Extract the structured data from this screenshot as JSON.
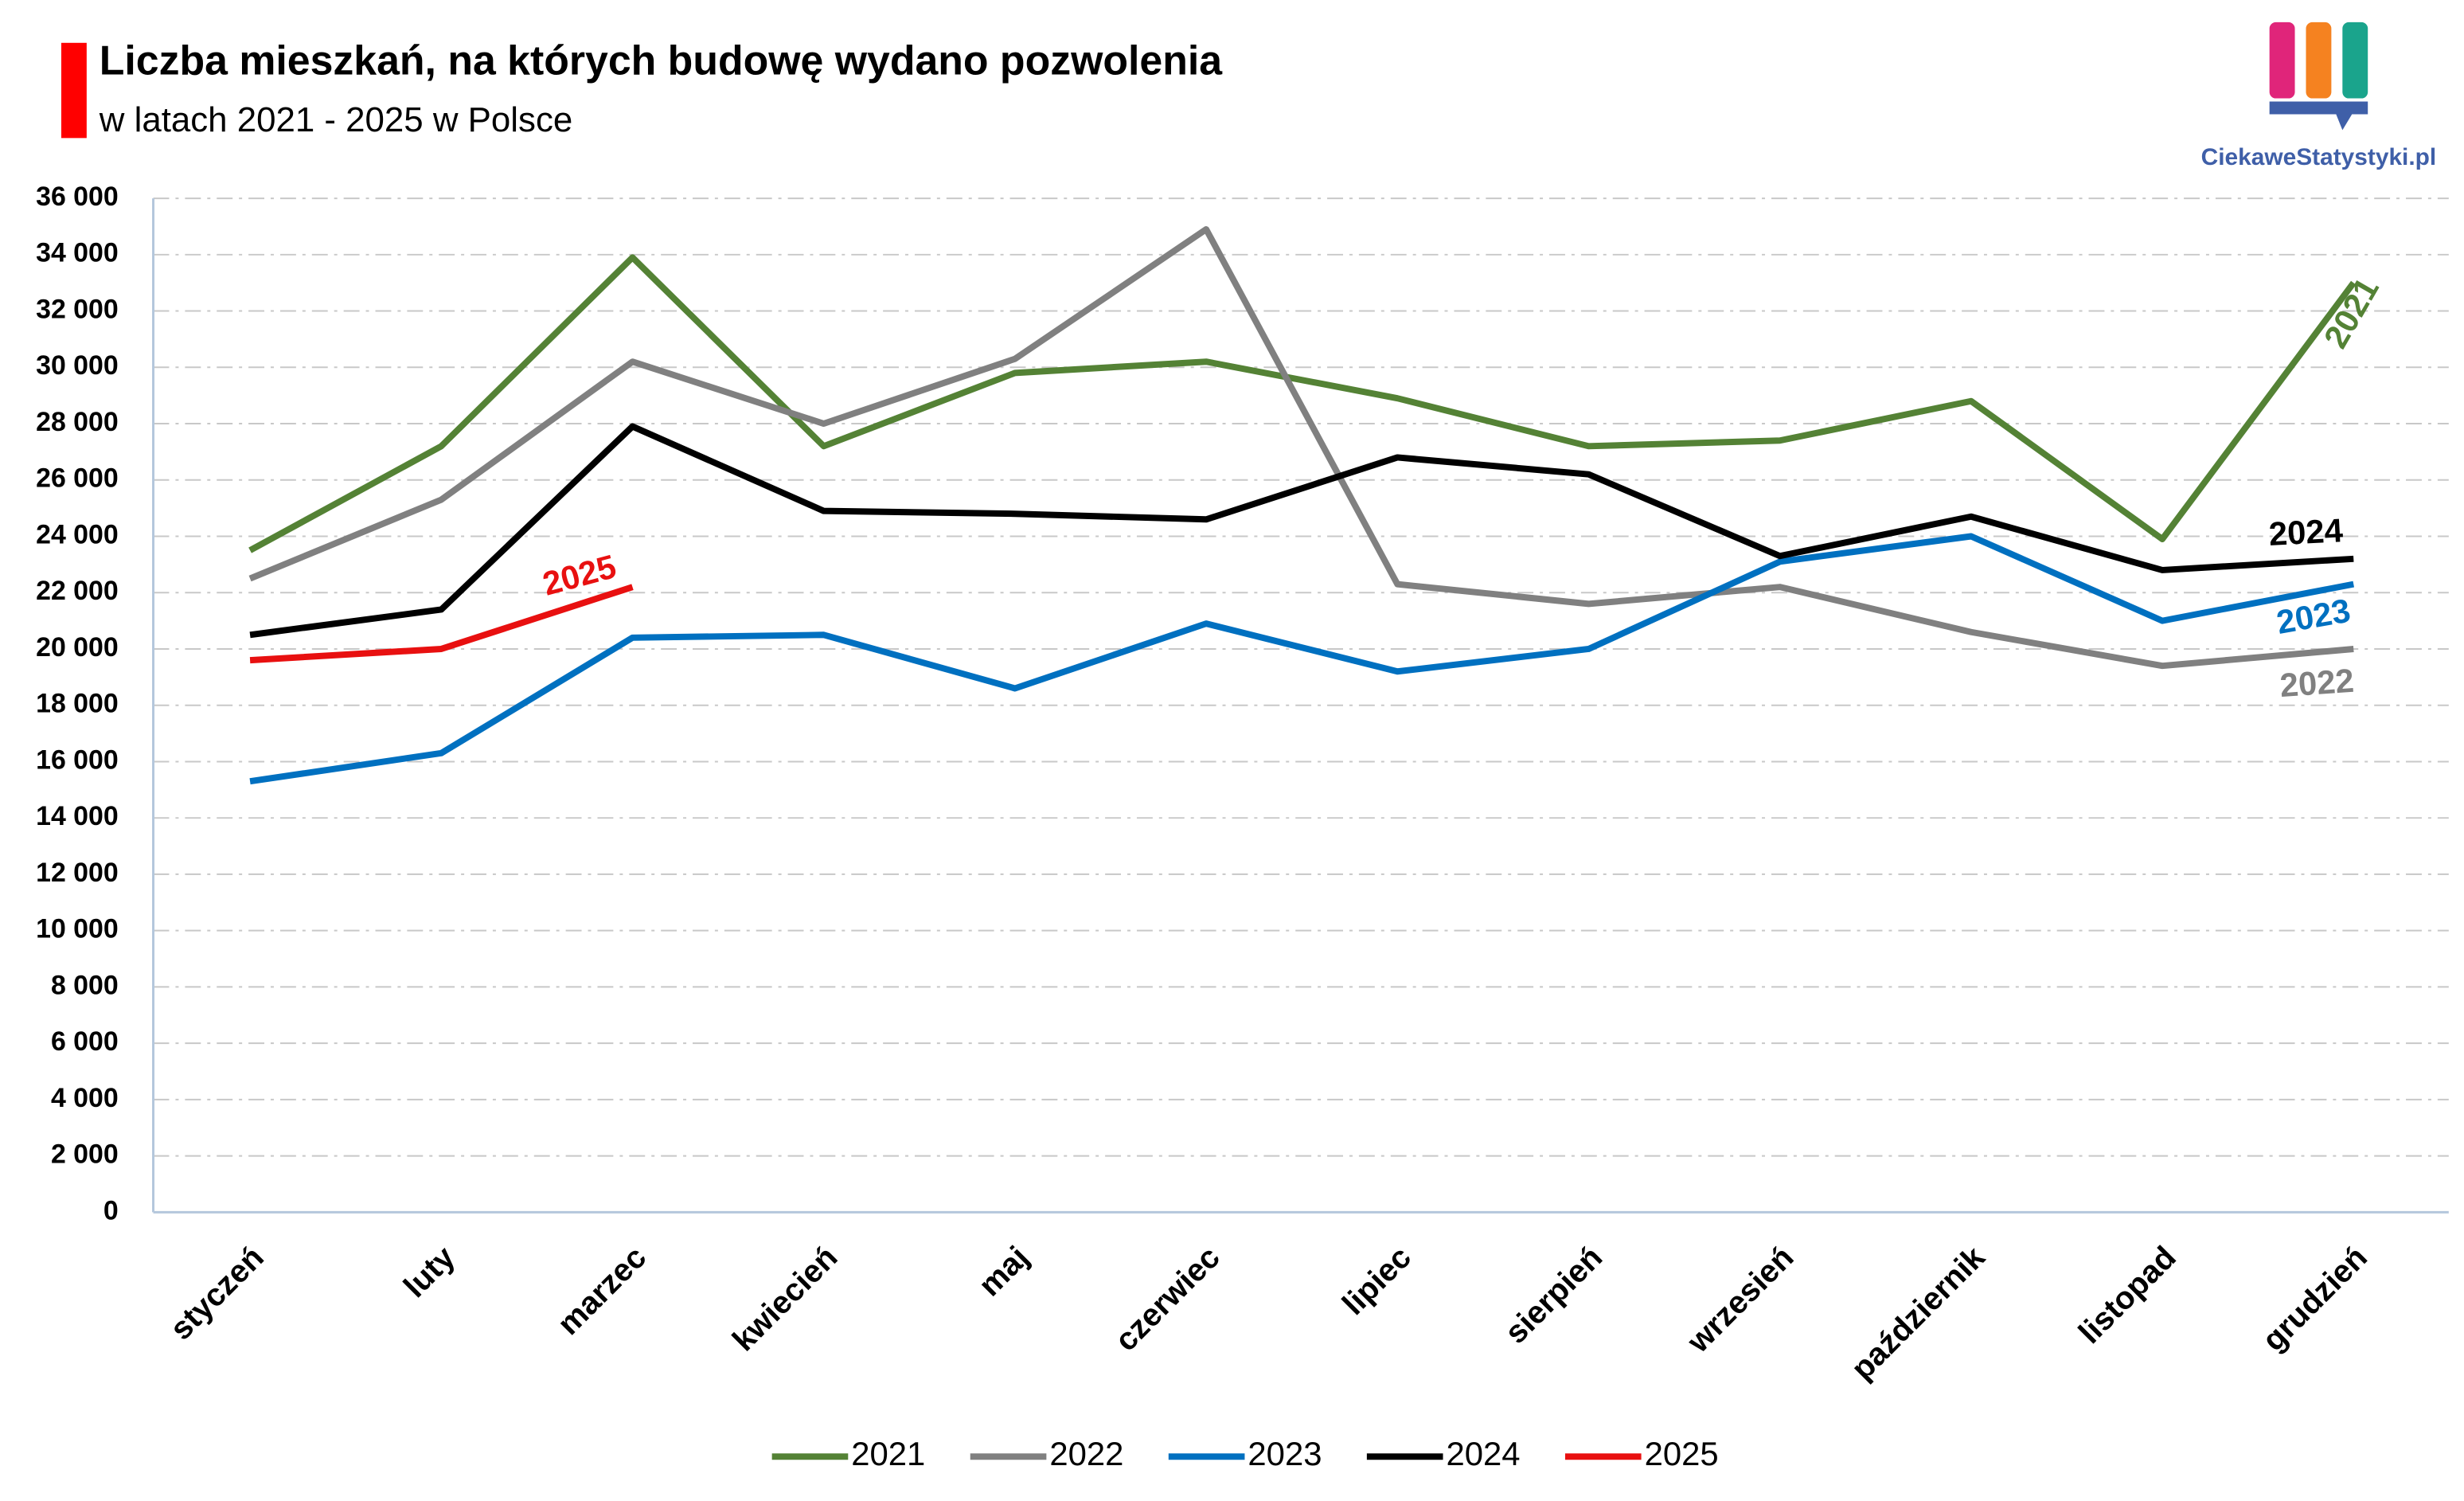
{
  "chart_data": {
    "type": "line",
    "title": "Liczba mieszkań, na których budowę wydano pozwolenia",
    "subtitle": "w latach 2021 - 2025 w Polsce",
    "logo": "CiekaweStatystyki.pl",
    "categories": [
      "styczeń",
      "luty",
      "marzec",
      "kwiecień",
      "maj",
      "czerwiec",
      "lipiec",
      "sierpień",
      "wrzesień",
      "październik",
      "listopad",
      "grudzień"
    ],
    "series": [
      {
        "name": "2021",
        "color": "#548235",
        "values": [
          23500,
          27200,
          33900,
          27200,
          29800,
          30200,
          28900,
          27200,
          27400,
          28800,
          23900,
          33000
        ]
      },
      {
        "name": "2022",
        "color": "#808080",
        "values": [
          22500,
          25300,
          30200,
          28000,
          30300,
          34900,
          22300,
          21600,
          22200,
          20600,
          19400,
          20000
        ]
      },
      {
        "name": "2023",
        "color": "#0070c0",
        "values": [
          15300,
          16300,
          20400,
          20500,
          18600,
          20900,
          19200,
          20000,
          23100,
          24000,
          21000,
          22300
        ]
      },
      {
        "name": "2024",
        "color": "#000000",
        "values": [
          20500,
          21400,
          27900,
          24900,
          24800,
          24600,
          26800,
          26200,
          23300,
          24700,
          22800,
          23200
        ]
      },
      {
        "name": "2025",
        "color": "#e81010",
        "values": [
          19600,
          20000,
          22200,
          null,
          null,
          null,
          null,
          null,
          null,
          null,
          null,
          null
        ]
      }
    ],
    "ylim": [
      0,
      36000
    ],
    "yticks": [
      0,
      {
        "value": 2000,
        "label": "2 000"
      },
      {
        "value": 4000,
        "label": "4 000"
      },
      {
        "value": 6000,
        "label": "6 000"
      },
      {
        "value": 8000,
        "label": "8 000"
      },
      {
        "value": 10000,
        "label": "10 000"
      },
      {
        "value": 12000,
        "label": "12 000"
      },
      {
        "value": 14000,
        "label": "14 000"
      },
      {
        "value": 16000,
        "label": "16 000"
      },
      {
        "value": 18000,
        "label": "18 000"
      },
      {
        "value": 20000,
        "label": "20 000"
      },
      {
        "value": 22000,
        "label": "22 000"
      },
      {
        "value": 24000,
        "label": "24 000"
      },
      {
        "value": 26000,
        "label": "26 000"
      },
      {
        "value": 28000,
        "label": "28 000"
      },
      {
        "value": 30000,
        "label": "30 000"
      },
      {
        "value": 32000,
        "label": "32 000"
      },
      {
        "value": 34000,
        "label": "34 000"
      },
      {
        "value": 36000,
        "label": "36 000"
      }
    ],
    "grid": true,
    "legend": "bottom"
  }
}
